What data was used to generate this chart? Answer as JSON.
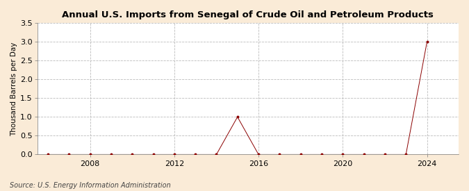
{
  "title": "Annual U.S. Imports from Senegal of Crude Oil and Petroleum Products",
  "ylabel": "Thousand Barrels per Day",
  "source": "Source: U.S. Energy Information Administration",
  "background_color": "#faebd7",
  "plot_background_color": "#ffffff",
  "xlim": [
    2005.5,
    2025.5
  ],
  "ylim": [
    0,
    3.5
  ],
  "yticks": [
    0.0,
    0.5,
    1.0,
    1.5,
    2.0,
    2.5,
    3.0,
    3.5
  ],
  "xticks": [
    2008,
    2012,
    2016,
    2020,
    2024
  ],
  "grid_color": "#bbbbbb",
  "line_color": "#8b0000",
  "marker_color": "#8b0000",
  "data_x": [
    2006,
    2007,
    2008,
    2009,
    2010,
    2011,
    2012,
    2013,
    2014,
    2015,
    2016,
    2017,
    2018,
    2019,
    2020,
    2021,
    2022,
    2023,
    2024
  ],
  "data_y": [
    0.0,
    0.0,
    0.0,
    0.0,
    0.0,
    0.0,
    0.0,
    0.0,
    0.0,
    1.0,
    0.0,
    0.0,
    0.0,
    0.0,
    0.0,
    0.0,
    0.0,
    0.0,
    3.0
  ]
}
